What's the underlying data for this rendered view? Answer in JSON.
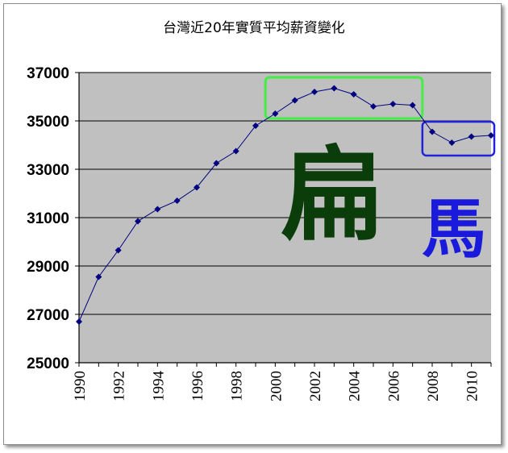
{
  "chart_data": {
    "type": "line",
    "title": "台灣近20年實質平均薪資變化",
    "xlabel": "",
    "ylabel": "",
    "x": [
      1990,
      1991,
      1992,
      1993,
      1994,
      1995,
      1996,
      1997,
      1998,
      1999,
      2000,
      2001,
      2002,
      2003,
      2004,
      2005,
      2006,
      2007,
      2008,
      2009,
      2010,
      2011
    ],
    "series": [
      {
        "values": [
          26700,
          28550,
          29650,
          30850,
          31350,
          31700,
          32250,
          33250,
          33750,
          34800,
          35300,
          35850,
          36200,
          36350,
          36100,
          35600,
          35700,
          35650,
          34550,
          34100,
          34350,
          34400
        ]
      }
    ],
    "xlim": [
      1990,
      2011
    ],
    "ylim": [
      25000,
      37000
    ],
    "y_ticks": [
      25000,
      27000,
      29000,
      31000,
      33000,
      35000,
      37000
    ],
    "x_ticks": [
      1990,
      1992,
      1994,
      1996,
      1998,
      2000,
      2002,
      2004,
      2006,
      2008,
      2010
    ],
    "grid": true,
    "line_color": "#000080",
    "plot_background": "#c0c0c0",
    "annotations": [
      {
        "text": "扁",
        "color": "#0a3d0a",
        "box_color": "#44ee44",
        "x_range": [
          1999.5,
          2007.5
        ]
      },
      {
        "text": "馬",
        "color": "#1a1adc",
        "box_color": "#2222dd",
        "x_range": [
          2007.5,
          2011
        ]
      }
    ]
  }
}
